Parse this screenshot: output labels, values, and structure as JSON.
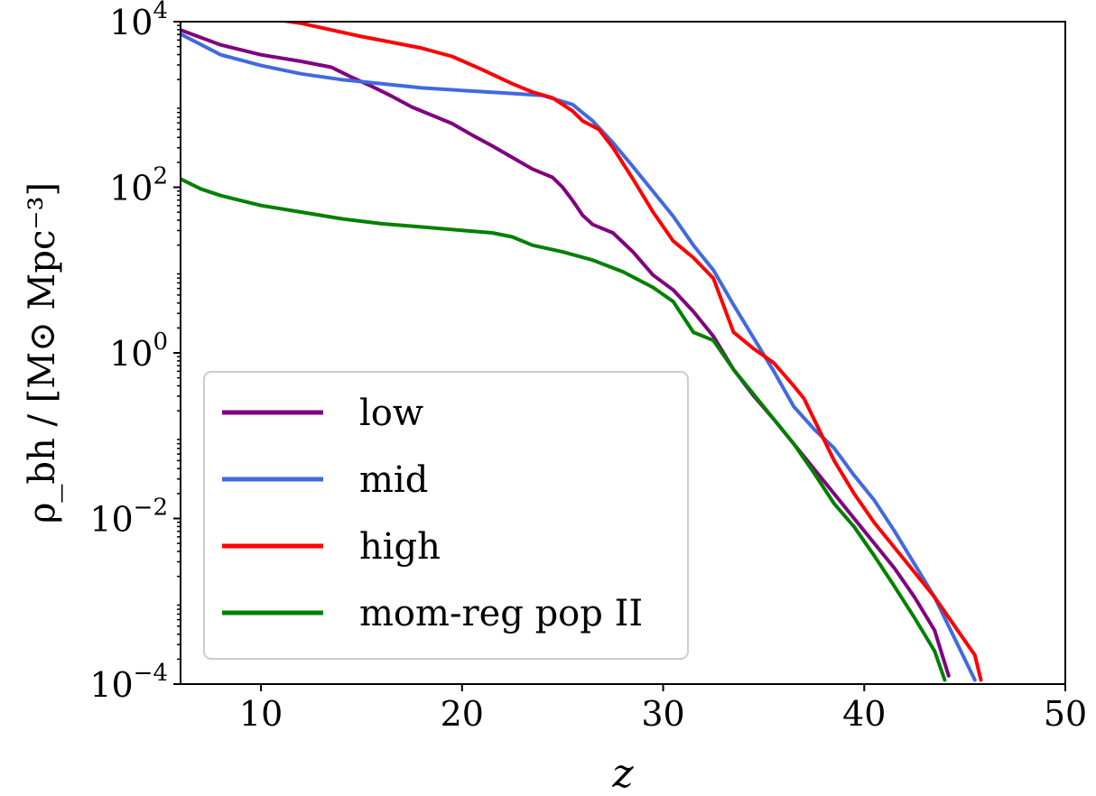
{
  "chart_data": {
    "type": "line",
    "xlabel": "z",
    "ylabel": "ρ_bh / [M⊙ Mpc⁻³]",
    "xlim": [
      6,
      50
    ],
    "ylim_log10": [
      -4,
      4
    ],
    "y_scale": "log",
    "grid": false,
    "legend_position": "lower-left",
    "x_ticks": [
      10,
      20,
      30,
      40,
      50
    ],
    "x_tick_labels": [
      "10",
      "20",
      "30",
      "40",
      "50"
    ],
    "y_ticks_log10": [
      -4,
      -2,
      0,
      2,
      4
    ],
    "y_tick_labels": [
      {
        "base": "10",
        "exp": "−4"
      },
      {
        "base": "10",
        "exp": "−2"
      },
      {
        "base": "10",
        "exp": "0"
      },
      {
        "base": "10",
        "exp": "2"
      },
      {
        "base": "10",
        "exp": "4"
      }
    ],
    "series": [
      {
        "name": "low",
        "color": "#800080",
        "x": [
          6.0,
          8.0,
          10.0,
          12.0,
          13.5,
          14.5,
          15.5,
          16.5,
          17.5,
          18.5,
          19.5,
          20.5,
          21.5,
          22.5,
          23.5,
          24.5,
          25.0,
          25.5,
          26.0,
          26.5,
          27.5,
          28.5,
          29.5,
          30.5,
          31.5,
          32.5,
          33.5,
          34.5,
          35.5,
          36.5,
          37.5,
          38.5,
          39.5,
          40.5,
          41.5,
          42.5,
          43.5,
          44.2
        ],
        "y_log10": [
          3.9,
          3.72,
          3.6,
          3.52,
          3.45,
          3.33,
          3.22,
          3.1,
          2.97,
          2.87,
          2.77,
          2.63,
          2.5,
          2.36,
          2.22,
          2.12,
          2.0,
          1.84,
          1.66,
          1.55,
          1.45,
          1.22,
          0.94,
          0.76,
          0.5,
          0.2,
          -0.2,
          -0.52,
          -0.8,
          -1.1,
          -1.4,
          -1.7,
          -2.0,
          -2.3,
          -2.6,
          -2.95,
          -3.35,
          -3.9
        ]
      },
      {
        "name": "mid",
        "color": "#4169e1",
        "x": [
          6.0,
          8.0,
          10.0,
          12.0,
          14.0,
          16.0,
          18.0,
          20.0,
          22.0,
          24.0,
          25.5,
          26.5,
          27.5,
          28.5,
          29.5,
          30.5,
          31.5,
          32.5,
          33.5,
          34.5,
          35.5,
          36.5,
          37.5,
          38.5,
          39.5,
          40.5,
          41.5,
          42.5,
          43.5,
          44.5,
          45.5
        ],
        "y_log10": [
          3.85,
          3.6,
          3.47,
          3.37,
          3.3,
          3.25,
          3.2,
          3.17,
          3.14,
          3.11,
          3.0,
          2.8,
          2.54,
          2.25,
          1.95,
          1.65,
          1.3,
          1.0,
          0.58,
          0.18,
          -0.22,
          -0.65,
          -0.92,
          -1.15,
          -1.48,
          -1.78,
          -2.15,
          -2.55,
          -2.95,
          -3.45,
          -3.95
        ]
      },
      {
        "name": "high",
        "color": "#ff0000",
        "x": [
          6.0,
          10.0,
          12.0,
          13.5,
          15.0,
          16.5,
          18.0,
          19.5,
          21.0,
          22.5,
          23.5,
          24.5,
          25.5,
          26.0,
          26.8,
          27.5,
          28.5,
          29.5,
          30.5,
          31.5,
          32.5,
          33.5,
          34.5,
          35.5,
          36.5,
          37.0,
          37.5,
          38.5,
          39.5,
          40.5,
          41.5,
          42.5,
          43.5,
          44.5,
          45.5,
          45.8
        ],
        "y_log10": [
          4.3,
          4.05,
          3.98,
          3.9,
          3.82,
          3.75,
          3.68,
          3.58,
          3.42,
          3.25,
          3.15,
          3.08,
          2.92,
          2.8,
          2.7,
          2.48,
          2.1,
          1.7,
          1.35,
          1.15,
          0.9,
          0.25,
          0.05,
          -0.12,
          -0.4,
          -0.55,
          -0.8,
          -1.3,
          -1.7,
          -2.05,
          -2.35,
          -2.65,
          -2.95,
          -3.3,
          -3.65,
          -3.95
        ]
      },
      {
        "name": "mom-reg pop II",
        "color": "#008000",
        "x": [
          6.0,
          7.0,
          8.0,
          10.0,
          12.0,
          14.0,
          16.0,
          18.0,
          20.0,
          21.5,
          22.5,
          23.5,
          25.0,
          26.5,
          28.0,
          29.5,
          30.5,
          31.5,
          32.5,
          33.5,
          34.5,
          35.5,
          36.5,
          37.5,
          38.5,
          39.5,
          40.5,
          41.5,
          42.5,
          43.5,
          44.0
        ],
        "y_log10": [
          2.1,
          1.98,
          1.9,
          1.78,
          1.7,
          1.62,
          1.56,
          1.52,
          1.48,
          1.45,
          1.4,
          1.3,
          1.22,
          1.12,
          0.98,
          0.79,
          0.62,
          0.25,
          0.15,
          -0.2,
          -0.5,
          -0.8,
          -1.1,
          -1.45,
          -1.82,
          -2.1,
          -2.45,
          -2.82,
          -3.2,
          -3.6,
          -3.95
        ]
      }
    ]
  }
}
